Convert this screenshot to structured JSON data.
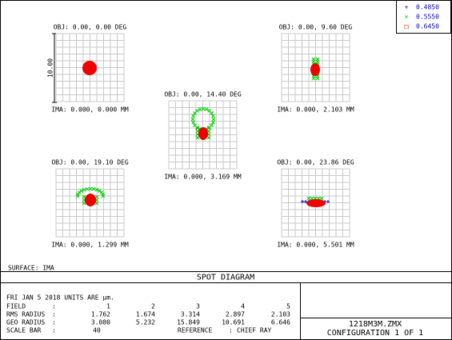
{
  "legend": [
    {
      "symbol": "+",
      "label": "0.4850",
      "color": "#0000cc"
    },
    {
      "symbol": "×",
      "label": "0.5550",
      "color": "#00cc00"
    },
    {
      "symbol": "□",
      "label": "0.6450",
      "color": "#ee0000"
    }
  ],
  "panels": [
    {
      "obj": "OBJ: 0.00, 0.00 DEG",
      "ima": "IMA: 0.000, 0.000 MM"
    },
    {
      "obj": "OBJ: 0.00, 9.60 DEG",
      "ima": "IMA: 0.000, 2.103 MM"
    },
    {
      "obj": "OBJ: 0.00, 14.40 DEG",
      "ima": "IMA: 0.000, 3.169 MM"
    },
    {
      "obj": "OBJ: 0.00, 19.10 DEG",
      "ima": "IMA: 0.000, 1.299 MM"
    },
    {
      "obj": "OBJ: 0.00, 23.86 DEG",
      "ima": "IMA: 0.000, 5.501 MM"
    }
  ],
  "scale_label": "10.00",
  "surface": "SURFACE: IMA",
  "title": "SPOT DIAGRAM",
  "info": "FRI JAN 5 2018  UNITS ARE µm.",
  "table": {
    "rows": [
      [
        "FIELD",
        ":",
        "1",
        "2",
        "3",
        "4",
        "5"
      ],
      [
        "RMS RADIUS",
        ":",
        "1.762",
        "1.674",
        "3.314",
        "2.897",
        "2.103"
      ],
      [
        "GEO RADIUS",
        ":",
        "3.080",
        "5.232",
        "15.849",
        "10.691",
        "6.646"
      ]
    ],
    "scale_row": [
      "SCALE BAR",
      ":",
      "40",
      "REFERENCE",
      ":",
      "CHIEF RAY"
    ]
  },
  "file": "1218M3M.ZMX",
  "config": "CONFIGURATION 1 OF 1"
}
